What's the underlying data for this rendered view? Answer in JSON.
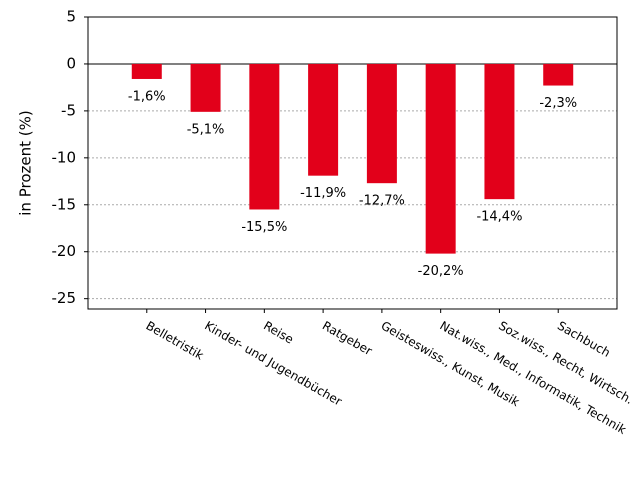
{
  "chart_data": {
    "type": "bar",
    "y_label": "in Prozent (%)",
    "categories": [
      "Belletristik",
      "Kinder- und Jugendbücher",
      "Reise",
      "Ratgeber",
      "Geisteswiss., Kunst, Musik",
      "Nat.wiss., Med., Informatik, Technik",
      "Soz.wiss., Recht, Wirtsch.",
      "Sachbuch"
    ],
    "values": [
      -1.6,
      -5.1,
      -15.5,
      -11.9,
      -12.7,
      -20.2,
      -14.4,
      -2.3
    ],
    "value_labels": [
      "-1,6%",
      "-5,1%",
      "-15,5%",
      "-11,9%",
      "-12,7%",
      "-20,2%",
      "-14,4%",
      "-2,3%"
    ],
    "color": "#e2001a",
    "ylim": [
      -26.1,
      5
    ],
    "yticks": [
      -25,
      -20,
      -15,
      -10,
      -5,
      0,
      5
    ],
    "grid": true
  }
}
